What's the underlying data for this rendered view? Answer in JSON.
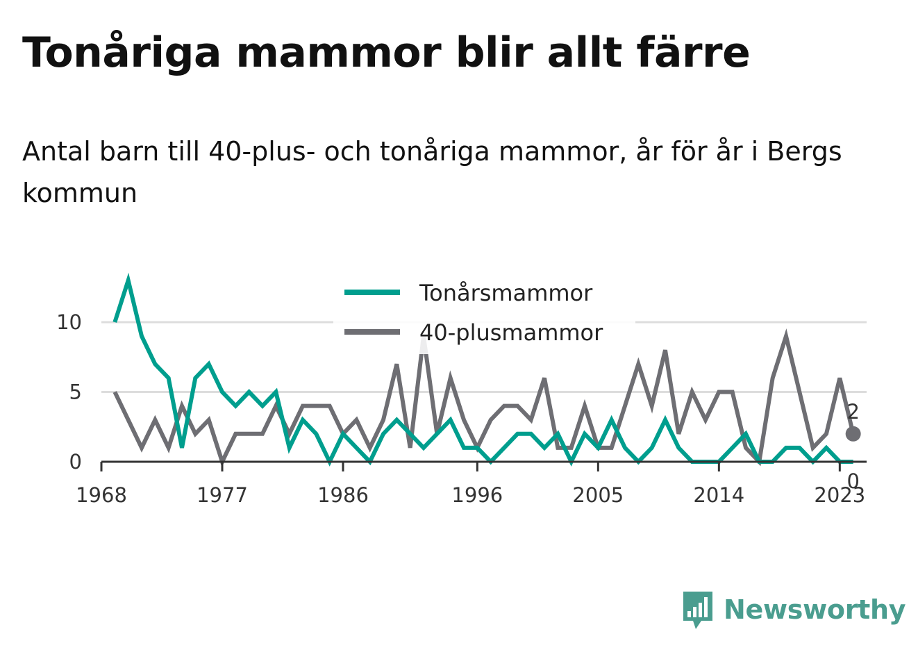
{
  "title": "Tonåriga mammor blir allt färre",
  "subtitle": "Antal barn till 40-plus- och tonåriga mammor, år för år i Bergs kommun",
  "brand": "Newsworthy",
  "colors": {
    "teen": "#009e8e",
    "forty": "#6e6e73",
    "grid": "#dddddd",
    "axis": "#333333",
    "brand": "#4a9d8f"
  },
  "chart_data": {
    "type": "line",
    "x": [
      1969,
      1970,
      1971,
      1972,
      1973,
      1974,
      1975,
      1976,
      1977,
      1978,
      1979,
      1980,
      1981,
      1982,
      1983,
      1984,
      1985,
      1986,
      1987,
      1988,
      1989,
      1990,
      1991,
      1992,
      1993,
      1994,
      1995,
      1996,
      1997,
      1998,
      1999,
      2000,
      2001,
      2002,
      2003,
      2004,
      2005,
      2006,
      2007,
      2008,
      2009,
      2010,
      2011,
      2012,
      2013,
      2014,
      2015,
      2016,
      2017,
      2018,
      2019,
      2020,
      2021,
      2022,
      2023,
      2024
    ],
    "series": [
      {
        "name": "Tonårsmammor",
        "color": "#009e8e",
        "values": [
          10,
          13,
          9,
          7,
          6,
          1,
          6,
          7,
          5,
          4,
          5,
          4,
          5,
          1,
          3,
          2,
          0,
          2,
          1,
          0,
          2,
          3,
          2,
          1,
          2,
          3,
          1,
          1,
          0,
          1,
          2,
          2,
          1,
          2,
          0,
          2,
          1,
          3,
          1,
          0,
          1,
          3,
          1,
          0,
          0,
          0,
          1,
          2,
          0,
          0,
          1,
          1,
          0,
          1,
          0,
          0
        ]
      },
      {
        "name": "40-plusmammor",
        "color": "#6e6e73",
        "values": [
          5,
          3,
          1,
          3,
          1,
          4,
          2,
          3,
          0,
          2,
          2,
          2,
          4,
          2,
          4,
          4,
          4,
          2,
          3,
          1,
          3,
          7,
          1,
          9,
          2,
          6,
          3,
          1,
          3,
          4,
          4,
          3,
          6,
          1,
          1,
          4,
          1,
          1,
          4,
          7,
          4,
          8,
          2,
          5,
          3,
          5,
          5,
          1,
          0,
          6,
          9,
          5,
          1,
          2,
          6,
          2
        ]
      }
    ],
    "xticks": [
      "1968",
      "1977",
      "1986",
      "1996",
      "2005",
      "2014",
      "2023"
    ],
    "yticks": [
      "0",
      "5",
      "10"
    ],
    "xlim": [
      1968,
      2025
    ],
    "ylim": [
      0,
      10
    ],
    "grid": true,
    "legend_position": "top",
    "end_labels": [
      "2",
      "0"
    ]
  }
}
